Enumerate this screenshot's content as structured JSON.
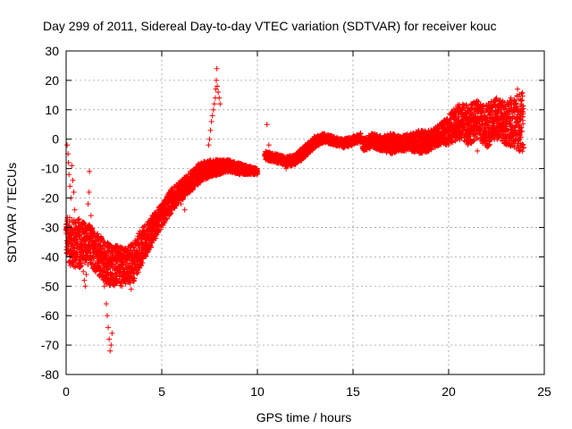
{
  "chart_data": {
    "type": "scatter",
    "title": "Day 299 of 2011, Sidereal Day-to-day VTEC variation (SDTVAR) for receiver kouc",
    "xlabel": "GPS time / hours",
    "ylabel": "SDTVAR / TECUs",
    "xlim": [
      0,
      25
    ],
    "ylim": [
      -80,
      30
    ],
    "x_ticks": [
      0,
      5,
      10,
      15,
      20,
      25
    ],
    "y_ticks": [
      -80,
      -70,
      -60,
      -50,
      -40,
      -30,
      -20,
      -10,
      0,
      10,
      20,
      30
    ],
    "grid": true,
    "legend": "none",
    "marker": "+",
    "series_color": "#ff0000",
    "series": [
      {
        "name": "SDTVAR",
        "band_segments": [
          [
            [
              0.0,
              -26,
              -40
            ],
            [
              0.3,
              -27,
              -44
            ],
            [
              0.7,
              -27,
              -44
            ],
            [
              1.0,
              -28,
              -42
            ],
            [
              1.4,
              -30,
              -44
            ],
            [
              1.8,
              -33,
              -47
            ],
            [
              2.2,
              -35,
              -50
            ],
            [
              2.6,
              -36,
              -50
            ],
            [
              3.0,
              -37,
              -50
            ],
            [
              3.5,
              -35,
              -49
            ],
            [
              4.0,
              -30,
              -42
            ],
            [
              4.5,
              -26,
              -36
            ],
            [
              5.0,
              -22,
              -30
            ],
            [
              5.5,
              -17,
              -25
            ],
            [
              6.0,
              -14,
              -21
            ],
            [
              6.5,
              -11,
              -18
            ],
            [
              7.0,
              -8,
              -15
            ],
            [
              7.5,
              -7,
              -13
            ],
            [
              8.0,
              -7,
              -12
            ],
            [
              8.5,
              -7,
              -11
            ],
            [
              9.0,
              -8,
              -12
            ],
            [
              9.5,
              -9,
              -12
            ],
            [
              10.0,
              -10,
              -12
            ]
          ],
          [
            [
              10.4,
              -4,
              -7
            ],
            [
              11.0,
              -5,
              -8
            ],
            [
              11.5,
              -6,
              -9
            ],
            [
              12.0,
              -5,
              -9
            ],
            [
              12.5,
              -2,
              -6
            ],
            [
              13.0,
              1,
              -3
            ],
            [
              13.5,
              2,
              -1
            ],
            [
              14.0,
              1,
              -2
            ],
            [
              14.5,
              0,
              -3
            ],
            [
              15.0,
              1,
              -2
            ],
            [
              15.4,
              2,
              -1
            ]
          ],
          [
            [
              15.5,
              0,
              -4
            ],
            [
              16.0,
              2,
              -3
            ],
            [
              16.5,
              1,
              -4
            ],
            [
              17.0,
              2,
              -5
            ],
            [
              17.5,
              1,
              -4
            ],
            [
              18.0,
              2,
              -4
            ],
            [
              18.5,
              3,
              -5
            ],
            [
              19.0,
              3,
              -4
            ],
            [
              19.5,
              5,
              -2
            ],
            [
              20.0,
              8,
              -2
            ],
            [
              20.5,
              12,
              0
            ],
            [
              21.0,
              12,
              -2
            ],
            [
              21.5,
              13,
              0
            ],
            [
              22.0,
              12,
              -3
            ],
            [
              22.5,
              14,
              0
            ],
            [
              23.0,
              13,
              -2
            ],
            [
              23.5,
              15,
              -3
            ],
            [
              23.9,
              16,
              -5
            ]
          ]
        ],
        "sparse_points": [
          [
            0.05,
            -2
          ],
          [
            0.1,
            -5
          ],
          [
            0.12,
            -8
          ],
          [
            0.15,
            -12
          ],
          [
            0.2,
            -16
          ],
          [
            0.25,
            -20
          ],
          [
            0.3,
            -9
          ],
          [
            0.35,
            -14
          ],
          [
            0.4,
            -18
          ],
          [
            0.45,
            -24
          ],
          [
            0.5,
            -28
          ],
          [
            0.55,
            -33
          ],
          [
            0.6,
            -37
          ],
          [
            0.7,
            -41
          ],
          [
            0.8,
            -43
          ],
          [
            0.9,
            -45
          ],
          [
            0.95,
            -48
          ],
          [
            1.0,
            -50
          ],
          [
            1.05,
            -46
          ],
          [
            1.1,
            -38
          ],
          [
            1.15,
            -22
          ],
          [
            1.2,
            -18
          ],
          [
            1.22,
            -11
          ],
          [
            1.3,
            -26
          ],
          [
            1.35,
            -31
          ],
          [
            1.4,
            -36
          ],
          [
            1.9,
            -42
          ],
          [
            2.0,
            -50
          ],
          [
            2.1,
            -56
          ],
          [
            2.15,
            -60
          ],
          [
            2.2,
            -64
          ],
          [
            2.25,
            -68
          ],
          [
            2.3,
            -72
          ],
          [
            2.35,
            -70
          ],
          [
            2.4,
            -66
          ],
          [
            3.2,
            -38
          ],
          [
            3.4,
            -51
          ],
          [
            3.8,
            -41
          ],
          [
            4.0,
            -30
          ],
          [
            6.2,
            -24
          ],
          [
            6.0,
            -22
          ],
          [
            7.45,
            -2
          ],
          [
            7.5,
            0
          ],
          [
            7.55,
            3
          ],
          [
            7.6,
            6
          ],
          [
            7.65,
            8
          ],
          [
            7.7,
            10
          ],
          [
            7.75,
            12
          ],
          [
            7.8,
            14
          ],
          [
            7.82,
            17
          ],
          [
            7.85,
            20
          ],
          [
            7.88,
            24
          ],
          [
            7.9,
            18
          ],
          [
            7.95,
            16
          ],
          [
            8.0,
            14
          ],
          [
            8.05,
            12
          ],
          [
            10.5,
            5
          ],
          [
            10.6,
            -2
          ],
          [
            11.5,
            -10
          ],
          [
            13.0,
            0
          ],
          [
            15.4,
            2
          ],
          [
            21.5,
            -4
          ],
          [
            22.5,
            14
          ],
          [
            23.6,
            17
          ]
        ]
      }
    ]
  }
}
